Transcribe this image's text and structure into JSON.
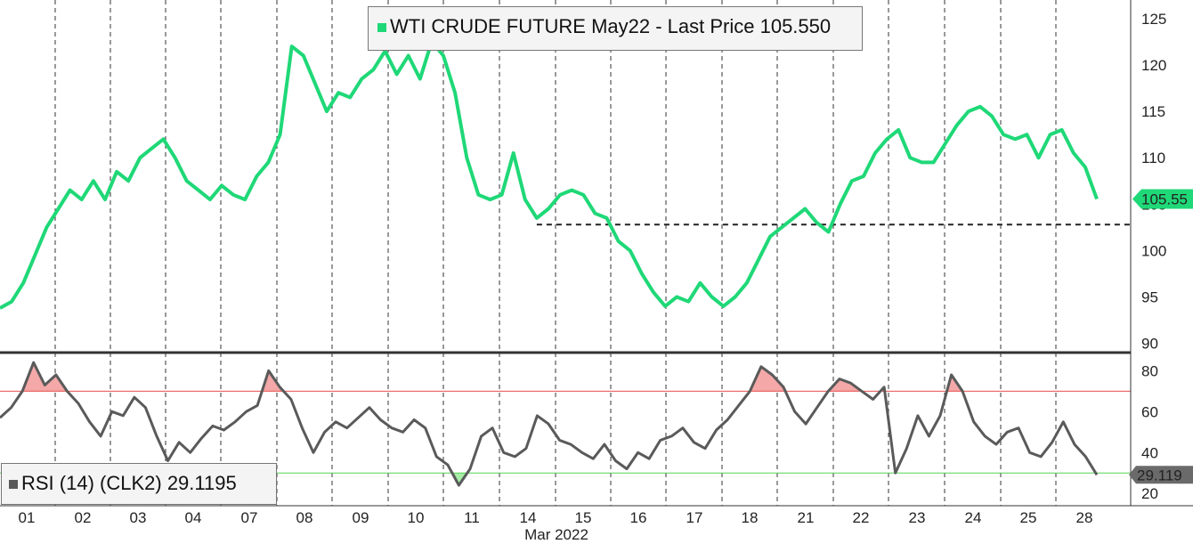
{
  "colors": {
    "price": "#1fd877",
    "rsi": "#5a5a5a",
    "overbought": "#e85050",
    "oversold": "#55d455",
    "overbought_fill": "#f4a8a8",
    "oversold_fill": "#a8eea8",
    "grid": "#333333",
    "support": "#222222",
    "divider": "#333333"
  },
  "legend": {
    "price_label": "WTI CRUDE FUTURE May22 - Last Price 105.550",
    "rsi_label": "RSI (14)  (CLK2) 29.1195"
  },
  "chart_data": [
    {
      "type": "line",
      "title": "",
      "series": [
        {
          "name": "WTI CRUDE FUTURE May22 - Last Price",
          "values": [
            93.8,
            94.5,
            96.5,
            99.5,
            102.5,
            104.5,
            106.5,
            105.5,
            107.5,
            105.5,
            108.5,
            107.5,
            110.0,
            111.0,
            112.0,
            110.0,
            107.5,
            106.5,
            105.5,
            107.0,
            106.0,
            105.5,
            108.0,
            109.5,
            112.5,
            122.0,
            121.0,
            118.0,
            115.0,
            117.0,
            116.5,
            118.5,
            119.5,
            121.5,
            119.0,
            121.0,
            118.5,
            122.5,
            121.0,
            117.0,
            110.0,
            106.0,
            105.5,
            106.0,
            110.5,
            105.5,
            103.5,
            104.5,
            106.0,
            106.5,
            106.0,
            104.0,
            103.5,
            101.0,
            100.0,
            97.5,
            95.5,
            94.0,
            95.0,
            94.5,
            96.5,
            95.0,
            94.0,
            95.0,
            96.5,
            99.0,
            101.5,
            102.5,
            103.5,
            104.5,
            103.0,
            102.0,
            105.0,
            107.5,
            108.0,
            110.5,
            112.0,
            113.0,
            110.0,
            109.5,
            109.5,
            111.5,
            113.5,
            115.0,
            115.5,
            114.5,
            112.5,
            112.0,
            112.5,
            110.0,
            112.5,
            113.0,
            110.5,
            109.0,
            105.55
          ]
        }
      ],
      "last_value_label": "105.55",
      "y_ticks": [
        "90",
        "95",
        "100",
        "105",
        "110",
        "115",
        "120",
        "125"
      ],
      "ylim": [
        89,
        127
      ],
      "support_level": 102.8,
      "support_start_index": 46
    },
    {
      "type": "line",
      "title": "",
      "series": [
        {
          "name": "RSI (14)  (CLK2)",
          "values": [
            57,
            62,
            70,
            84,
            73,
            78,
            70,
            64,
            55,
            48,
            60,
            58,
            67,
            62,
            48,
            36,
            45,
            40,
            47,
            53,
            51,
            55,
            60,
            63,
            80,
            72,
            66,
            52,
            40,
            50,
            55,
            52,
            57,
            62,
            56,
            52,
            50,
            56,
            52,
            38,
            34,
            24,
            32,
            48,
            52,
            40,
            38,
            42,
            58,
            54,
            46,
            44,
            40,
            37,
            44,
            36,
            32,
            40,
            37,
            46,
            48,
            52,
            45,
            42,
            51,
            56,
            63,
            70,
            82,
            78,
            72,
            60,
            54,
            62,
            70,
            76,
            74,
            70,
            66,
            72,
            30,
            42,
            58,
            48,
            58,
            78,
            70,
            55,
            48,
            44,
            50,
            52,
            40,
            38,
            45,
            55,
            44,
            38,
            29.1195
          ]
        }
      ],
      "last_value_label": "29.119",
      "y_ticks": [
        "20",
        "40",
        "60",
        "80"
      ],
      "ylim": [
        14,
        88
      ],
      "overbought": 70,
      "oversold": 30
    }
  ],
  "x_axis": {
    "tick_labels": [
      "01",
      "02",
      "03",
      "04",
      "07",
      "08",
      "09",
      "10",
      "11",
      "14",
      "15",
      "16",
      "17",
      "18",
      "21",
      "22",
      "23",
      "24",
      "25",
      "28"
    ],
    "month_label": "Mar 2022"
  }
}
